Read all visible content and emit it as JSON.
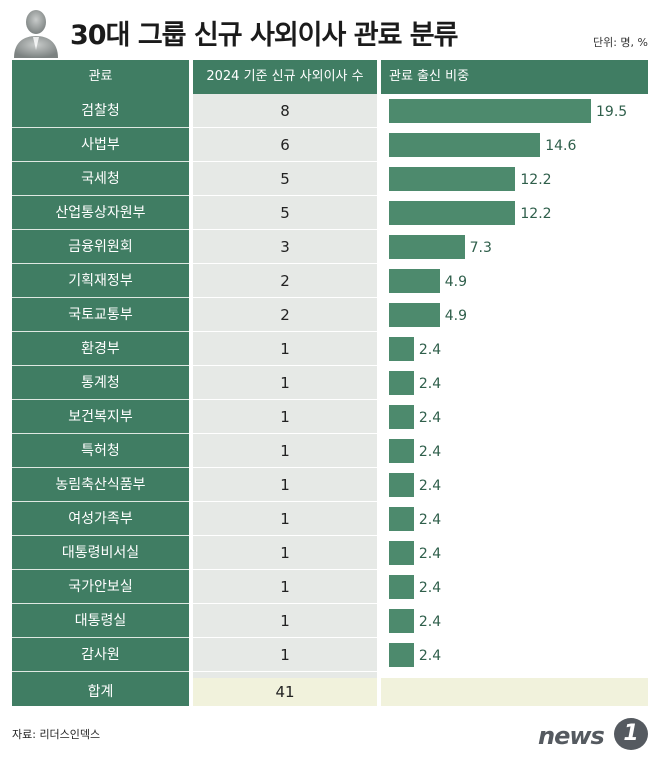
{
  "title": "30대 그룹 신규 사외이사 관료 분류",
  "unit": "단위: 명, %",
  "headers": {
    "col1": "관료",
    "col2": "2024 기준 신규 사외이사 수",
    "col3": "관료 출신 비중"
  },
  "chart_data": {
    "type": "bar",
    "title": "30대 그룹 신규 사외이사 관료 분류",
    "categories": [
      "검찰청",
      "사법부",
      "국세청",
      "산업통상자원부",
      "금융위원회",
      "기획재정부",
      "국토교통부",
      "환경부",
      "통계청",
      "보건복지부",
      "특허청",
      "농림축산식품부",
      "여성가족부",
      "대통령비서실",
      "국가안보실",
      "대통령실",
      "감사원"
    ],
    "series": [
      {
        "name": "2024 기준 신규 사외이사 수",
        "values": [
          "8",
          "6",
          "5",
          "5",
          "3",
          "2",
          "2",
          "1",
          "1",
          "1",
          "1",
          "1",
          "1",
          "1",
          "1",
          "1",
          "1"
        ]
      },
      {
        "name": "관료 출신 비중",
        "values": [
          "19.5",
          "14.6",
          "12.2",
          "12.2",
          "7.3",
          "4.9",
          "4.9",
          "2.4",
          "2.4",
          "2.4",
          "2.4",
          "2.4",
          "2.4",
          "2.4",
          "2.4",
          "2.4",
          "2.4"
        ]
      }
    ],
    "xlim": [
      0,
      19.5
    ],
    "total_label": "합계",
    "total_value": "41"
  },
  "colors": {
    "header_green": "#407d63",
    "bar_green": "#4d8a6d",
    "count_bg": "#e6e9e6",
    "total_bg": "#f1f2dc"
  },
  "source": "자료: 리더스인덱스",
  "logo": {
    "text": "news",
    "badge": "1"
  }
}
